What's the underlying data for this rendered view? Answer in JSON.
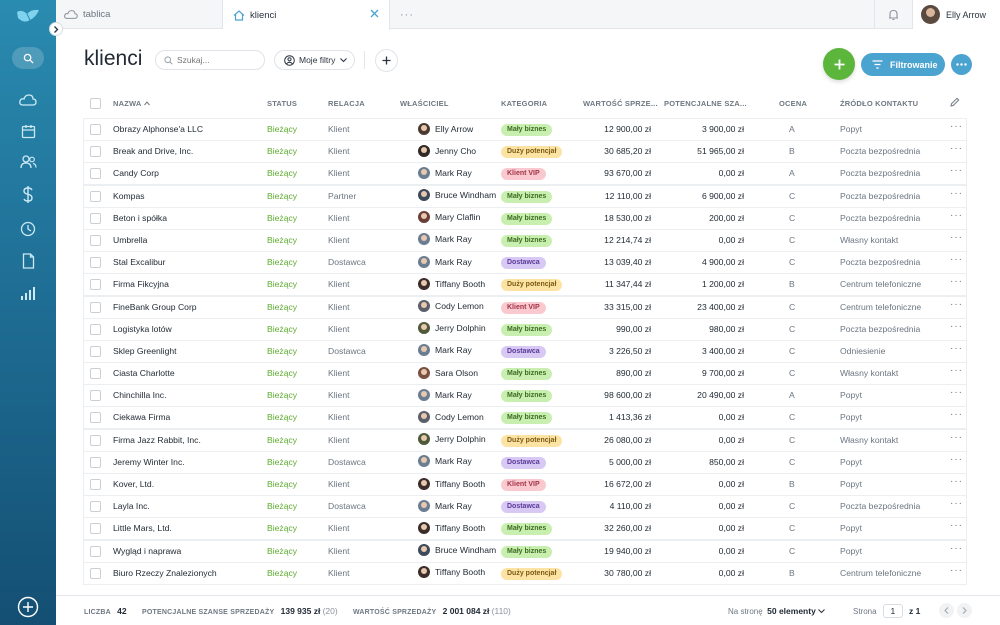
{
  "tabs": [
    {
      "label": "tablica",
      "icon": "cloud-icon"
    },
    {
      "label": "klienci",
      "icon": "home-icon"
    },
    {
      "label": "···"
    }
  ],
  "user": {
    "name": "Elly Arrow"
  },
  "page": {
    "title": "klienci"
  },
  "toolbar": {
    "search_placeholder": "Szukaj...",
    "filters_label": "Moje filtry",
    "filter_button_label": "Filtrowanie"
  },
  "table": {
    "columns": [
      "NAZWA",
      "STATUS",
      "RELACJA",
      "WŁAŚCICIEL",
      "KATEGORIA",
      "WARTOŚĆ SPRZE...",
      "POTENCJALNE SZA...",
      "OCENA",
      "ŹRÓDŁO KONTAKTU"
    ],
    "rows": [
      {
        "name": "Obrazy Alphonse'a LLC",
        "status": "Bieżący",
        "relation": "Klient",
        "owner": "Elly Arrow",
        "category": "Mały biznes",
        "value": "12 900,00 zł",
        "potential": "3 900,00 zł",
        "rating": "A",
        "source": "Popyt"
      },
      {
        "name": "Break and Drive, Inc.",
        "status": "Bieżący",
        "relation": "Klient",
        "owner": "Jenny Cho",
        "category": "Duży potencjał",
        "value": "30 685,20 zł",
        "potential": "51 965,00 zł",
        "rating": "B",
        "source": "Poczta bezpośrednia"
      },
      {
        "name": "Candy Corp",
        "status": "Bieżący",
        "relation": "Klient",
        "owner": "Mark Ray",
        "category": "Klient VIP",
        "value": "93 670,00 zł",
        "potential": "0,00 zł",
        "rating": "A",
        "source": "Poczta bezpośrednia"
      },
      {
        "name": "Kompas",
        "status": "Bieżący",
        "relation": "Partner",
        "owner": "Bruce Windham",
        "category": "Mały biznes",
        "value": "12 110,00 zł",
        "potential": "6 900,00 zł",
        "rating": "C",
        "source": "Poczta bezpośrednia"
      },
      {
        "name": "Beton i spółka",
        "status": "Bieżący",
        "relation": "Klient",
        "owner": "Mary Claflin",
        "category": "Mały biznes",
        "value": "18 530,00 zł",
        "potential": "200,00 zł",
        "rating": "C",
        "source": "Poczta bezpośrednia"
      },
      {
        "name": "Umbrella",
        "status": "Bieżący",
        "relation": "Klient",
        "owner": "Mark Ray",
        "category": "Mały biznes",
        "value": "12 214,74 zł",
        "potential": "0,00 zł",
        "rating": "C",
        "source": "Własny kontakt"
      },
      {
        "name": "Stal Excalibur",
        "status": "Bieżący",
        "relation": "Dostawca",
        "owner": "Mark Ray",
        "category": "Dostawca",
        "value": "13 039,40 zł",
        "potential": "4 900,00 zł",
        "rating": "C",
        "source": "Poczta bezpośrednia"
      },
      {
        "name": "Firma Fikcyjna",
        "status": "Bieżący",
        "relation": "Klient",
        "owner": "Tiffany Booth",
        "category": "Duży potencjał",
        "value": "11 347,44 zł",
        "potential": "1 200,00 zł",
        "rating": "B",
        "source": "Centrum telefoniczne"
      },
      {
        "name": "FineBank Group Corp",
        "status": "Bieżący",
        "relation": "Klient",
        "owner": "Cody Lemon",
        "category": "Klient VIP",
        "value": "33 315,00 zł",
        "potential": "23 400,00 zł",
        "rating": "C",
        "source": "Centrum telefoniczne"
      },
      {
        "name": "Logistyka lotów",
        "status": "Bieżący",
        "relation": "Klient",
        "owner": "Jerry Dolphin",
        "category": "Mały biznes",
        "value": "990,00 zł",
        "potential": "980,00 zł",
        "rating": "C",
        "source": "Poczta bezpośrednia"
      },
      {
        "name": "Sklep Greenlight",
        "status": "Bieżący",
        "relation": "Dostawca",
        "owner": "Mark Ray",
        "category": "Dostawca",
        "value": "3 226,50 zł",
        "potential": "3 400,00 zł",
        "rating": "C",
        "source": "Odniesienie"
      },
      {
        "name": "Ciasta Charlotte",
        "status": "Bieżący",
        "relation": "Klient",
        "owner": "Sara Olson",
        "category": "Mały biznes",
        "value": "890,00 zł",
        "potential": "9 700,00 zł",
        "rating": "C",
        "source": "Własny kontakt"
      },
      {
        "name": "Chinchilla Inc.",
        "status": "Bieżący",
        "relation": "Klient",
        "owner": "Mark Ray",
        "category": "Mały biznes",
        "value": "98 600,00 zł",
        "potential": "20 490,00 zł",
        "rating": "A",
        "source": "Popyt"
      },
      {
        "name": "Ciekawa Firma",
        "status": "Bieżący",
        "relation": "Klient",
        "owner": "Cody Lemon",
        "category": "Mały biznes",
        "value": "1 413,36 zł",
        "potential": "0,00 zł",
        "rating": "C",
        "source": "Popyt"
      },
      {
        "name": "Firma Jazz Rabbit, Inc.",
        "status": "Bieżący",
        "relation": "Klient",
        "owner": "Jerry Dolphin",
        "category": "Duży potencjał",
        "value": "26 080,00 zł",
        "potential": "0,00 zł",
        "rating": "C",
        "source": "Własny kontakt"
      },
      {
        "name": "Jeremy Winter Inc.",
        "status": "Bieżący",
        "relation": "Dostawca",
        "owner": "Mark Ray",
        "category": "Dostawca",
        "value": "5 000,00 zł",
        "potential": "850,00 zł",
        "rating": "C",
        "source": "Popyt"
      },
      {
        "name": "Kover, Ltd.",
        "status": "Bieżący",
        "relation": "Klient",
        "owner": "Tiffany Booth",
        "category": "Klient VIP",
        "value": "16 672,00 zł",
        "potential": "0,00 zł",
        "rating": "B",
        "source": "Popyt"
      },
      {
        "name": "Layla Inc.",
        "status": "Bieżący",
        "relation": "Dostawca",
        "owner": "Mark Ray",
        "category": "Dostawca",
        "value": "4 110,00 zł",
        "potential": "0,00 zł",
        "rating": "C",
        "source": "Poczta bezpośrednia"
      },
      {
        "name": "Little Mars, Ltd.",
        "status": "Bieżący",
        "relation": "Klient",
        "owner": "Tiffany Booth",
        "category": "Mały biznes",
        "value": "32 260,00 zł",
        "potential": "0,00 zł",
        "rating": "C",
        "source": "Popyt"
      },
      {
        "name": "Wygląd i naprawa",
        "status": "Bieżący",
        "relation": "Klient",
        "owner": "Bruce Windham",
        "category": "Mały biznes",
        "value": "19 940,00 zł",
        "potential": "0,00 zł",
        "rating": "C",
        "source": "Popyt"
      },
      {
        "name": "Biuro Rzeczy Znalezionych",
        "status": "Bieżący",
        "relation": "Klient",
        "owner": "Tiffany Booth",
        "category": "Duży potencjał",
        "value": "30 780,00 zł",
        "potential": "0,00 zł",
        "rating": "B",
        "source": "Centrum telefoniczne"
      }
    ]
  },
  "footer": {
    "count_label": "LICZBA",
    "count_value": "42",
    "potential_label": "POTENCJALNE SZANSE SPRZEDAŻY",
    "potential_value": "139 935 zł",
    "potential_count": "(20)",
    "sales_label": "WARTOŚĆ SPRZEDAŻY",
    "sales_value": "2 001 084 zł",
    "sales_count": "(110)",
    "per_page_label": "Na stronę",
    "per_page_value": "50 elementy",
    "page_label": "Strona",
    "page_value": "1",
    "page_total": "z 1"
  },
  "colors": {
    "accent": "#4ba3cf",
    "add": "#5bb63b",
    "status": "#5cab2f"
  }
}
